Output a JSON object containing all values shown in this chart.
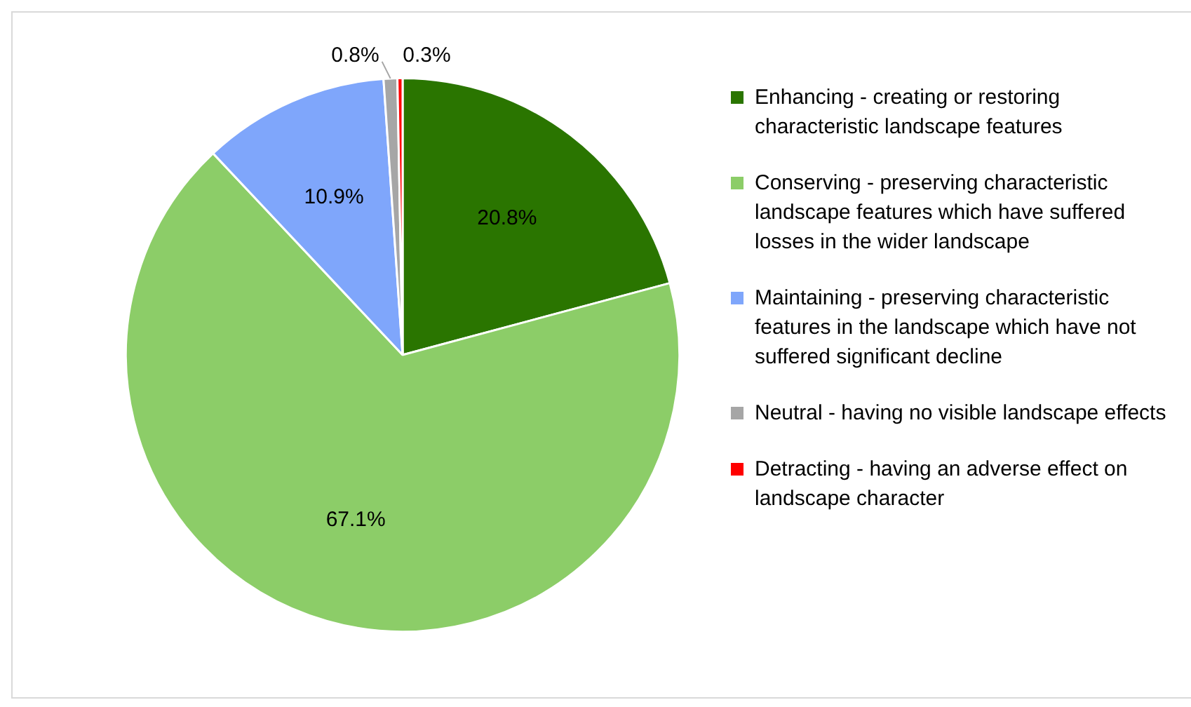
{
  "chart_data": {
    "type": "pie",
    "legend": "right",
    "categories": [
      "Enhancing - creating or restoring characteristic landscape features",
      "Conserving - preserving characteristic landscape features which have suffered losses in the wider landscape",
      "Maintaining - preserving characteristic features in the landscape which have not suffered significant decline",
      "Neutral - having no visible landscape effects",
      "Detracting - having an adverse effect on landscape character"
    ],
    "values": [
      20.8,
      67.1,
      10.9,
      0.8,
      0.3
    ],
    "value_labels": [
      "20.8%",
      "67.1%",
      "10.9%",
      "0.8%",
      "0.3%"
    ],
    "colors": [
      "#2a7500",
      "#8ccd68",
      "#7fa6fb",
      "#a6a6a6",
      "#ff0000"
    ]
  }
}
